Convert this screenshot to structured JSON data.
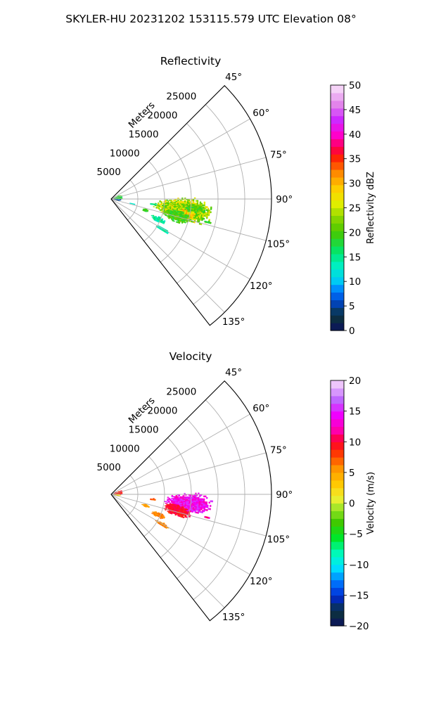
{
  "figure": {
    "suptitle": "SKYLER-HU  20231202  153115.579 UTC Elevation 08°"
  },
  "chart_data": [
    {
      "type": "heatmap",
      "projection": "polar-sector",
      "title": "Reflectivity",
      "radial_label": "Meters",
      "radial_ticks": [
        5000,
        10000,
        15000,
        20000,
        25000
      ],
      "radial_tick_labels": [
        "5000",
        "10000",
        "15000",
        "20000",
        "25000"
      ],
      "r_range": [
        0,
        30000
      ],
      "angle_ticks": [
        45,
        60,
        75,
        90,
        105,
        120,
        135
      ],
      "angle_tick_labels": [
        "45°",
        "60°",
        "75°",
        "90°",
        "105°",
        "120°",
        "135°"
      ],
      "angle_range": [
        45,
        142
      ],
      "grid": true,
      "colorbar": {
        "label": "Reflectivity dBZ",
        "range": [
          0,
          50
        ],
        "ticks": [
          0,
          5,
          10,
          15,
          20,
          25,
          30,
          35,
          40,
          45,
          50
        ],
        "tick_labels": [
          "0",
          "5",
          "10",
          "15",
          "20",
          "25",
          "30",
          "35",
          "40",
          "45",
          "50"
        ],
        "levels": 32,
        "colormap": "pyart_HomeyerRainbow"
      },
      "echoes": [
        {
          "az": 98,
          "r": 13500,
          "daz": 9,
          "dr": 5500,
          "value": 24,
          "spread": 5
        },
        {
          "az": 101,
          "r": 13800,
          "daz": 3,
          "dr": 2200,
          "value": 29,
          "spread": 3
        },
        {
          "az": 104,
          "r": 12600,
          "daz": 5,
          "dr": 2600,
          "value": 20,
          "spread": 3
        },
        {
          "az": 96,
          "r": 15600,
          "daz": 3,
          "dr": 2000,
          "value": 20,
          "spread": 3
        },
        {
          "az": 96.5,
          "r": 7800,
          "daz": 1.2,
          "dr": 700,
          "value": 15,
          "spread": 2
        },
        {
          "az": 108,
          "r": 6700,
          "daz": 2.2,
          "dr": 700,
          "value": 19,
          "spread": 2
        },
        {
          "az": 113,
          "r": 9500,
          "daz": 3,
          "dr": 1400,
          "value": 14,
          "spread": 2
        },
        {
          "az": 120,
          "r": 11000,
          "daz": 1.8,
          "dr": 1400,
          "value": 14,
          "spread": 1
        },
        {
          "az": 102,
          "r": 4000,
          "daz": 1.2,
          "dr": 700,
          "value": 13,
          "spread": 1
        },
        {
          "az": 103,
          "r": 18400,
          "daz": 0.8,
          "dr": 700,
          "value": 18,
          "spread": 1
        },
        {
          "az": 80,
          "r": 1200,
          "daz": 14,
          "dr": 900,
          "value": 18,
          "spread": 4
        },
        {
          "az": 95,
          "r": 1000,
          "daz": 7,
          "dr": 700,
          "value": 5,
          "spread": 5
        }
      ]
    },
    {
      "type": "heatmap",
      "projection": "polar-sector",
      "title": "Velocity",
      "radial_label": "Meters",
      "radial_ticks": [
        5000,
        10000,
        15000,
        20000,
        25000
      ],
      "radial_tick_labels": [
        "5000",
        "10000",
        "15000",
        "20000",
        "25000"
      ],
      "r_range": [
        0,
        30000
      ],
      "angle_ticks": [
        45,
        60,
        75,
        90,
        105,
        120,
        135
      ],
      "angle_tick_labels": [
        "45°",
        "60°",
        "75°",
        "90°",
        "105°",
        "120°",
        "135°"
      ],
      "angle_range": [
        45,
        142
      ],
      "grid": true,
      "colorbar": {
        "label": "Velocity (m/s)",
        "range": [
          -20,
          20
        ],
        "ticks": [
          -20,
          -15,
          -10,
          -5,
          0,
          5,
          10,
          15,
          20
        ],
        "tick_labels": [
          "−20",
          "−15",
          "−10",
          "−5",
          "0",
          "5",
          "10",
          "15",
          "20"
        ],
        "levels": 32,
        "colormap": "pyart_BuDRd18"
      },
      "echoes": [
        {
          "az": 96,
          "r": 14500,
          "daz": 7,
          "dr": 4500,
          "value": 14,
          "spread": 2
        },
        {
          "az": 104,
          "r": 12800,
          "daz": 4,
          "dr": 2600,
          "value": 9.5,
          "spread": 1.5
        },
        {
          "az": 101,
          "r": 11800,
          "daz": 3,
          "dr": 1800,
          "value": 10,
          "spread": 1
        },
        {
          "az": 96.5,
          "r": 7800,
          "daz": 1.2,
          "dr": 700,
          "value": 8,
          "spread": 1
        },
        {
          "az": 108,
          "r": 6700,
          "daz": 2.2,
          "dr": 700,
          "value": 5,
          "spread": 1
        },
        {
          "az": 113,
          "r": 9500,
          "daz": 3,
          "dr": 1400,
          "value": 6,
          "spread": 1
        },
        {
          "az": 120,
          "r": 11000,
          "daz": 1.8,
          "dr": 1400,
          "value": 6,
          "spread": 1
        },
        {
          "az": 103,
          "r": 18400,
          "daz": 0.8,
          "dr": 700,
          "value": 12,
          "spread": 1
        },
        {
          "az": 80,
          "r": 1200,
          "daz": 14,
          "dr": 900,
          "value": 9,
          "spread": 2
        },
        {
          "az": 95,
          "r": 1000,
          "daz": 7,
          "dr": 700,
          "value": 2,
          "spread": 2
        }
      ]
    }
  ]
}
